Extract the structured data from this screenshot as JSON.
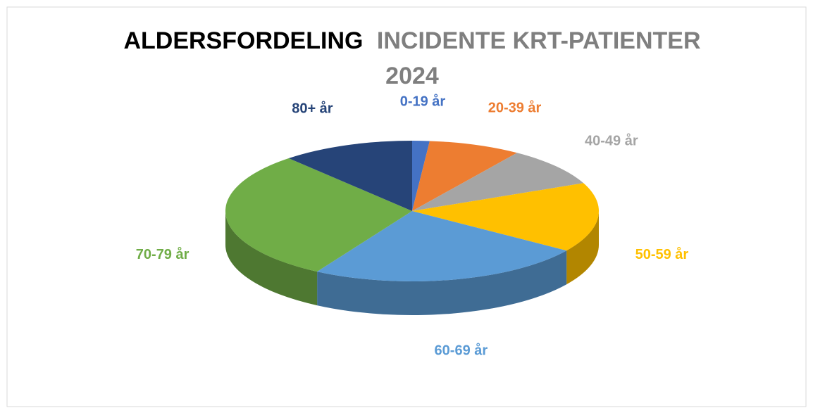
{
  "chart_data": {
    "type": "pie3d",
    "title": [
      "ALDERSFORDELING",
      "INCIDENTE KRT-PATIENTER",
      "2024"
    ],
    "categories": [
      "0-19 år",
      "20-39 år",
      "40-49 år",
      "50-59 år",
      "60-69 år",
      "70-79 år",
      "80+ år"
    ],
    "values": [
      1.5,
      8,
      9,
      16,
      24,
      30,
      11.5
    ],
    "colors": [
      "#4472c4",
      "#ed7d31",
      "#a5a5a5",
      "#ffc000",
      "#5b9bd5",
      "#70ad47",
      "#264478"
    ]
  }
}
